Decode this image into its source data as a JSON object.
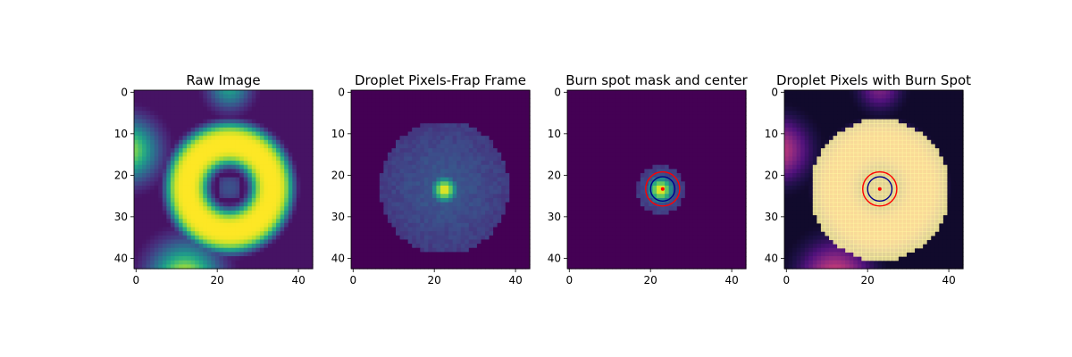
{
  "chart_data": [
    {
      "type": "heatmap",
      "title": "Raw Image",
      "colormap": "viridis",
      "xlim": [
        0,
        43
      ],
      "ylim": [
        0,
        42
      ],
      "xticks": [
        "0",
        "20",
        "40"
      ],
      "yticks": [
        "0",
        "10",
        "20",
        "30",
        "40"
      ],
      "features": [
        {
          "kind": "ring",
          "cx": 23,
          "cy": 23,
          "inner_radius": 5,
          "outer_radius": 16,
          "peak": 1.0
        },
        {
          "kind": "spot",
          "cx": 23,
          "cy": 23,
          "radius": 3,
          "value": 0.25
        },
        {
          "kind": "blob",
          "cx": -2,
          "cy": 14,
          "radius": 7,
          "peak": 0.85
        },
        {
          "kind": "blob",
          "cx": 23,
          "cy": -1,
          "radius": 5,
          "peak": 0.55
        },
        {
          "kind": "blob",
          "cx": 12,
          "cy": 45,
          "radius": 8,
          "peak": 0.95
        }
      ]
    },
    {
      "type": "heatmap",
      "title": "Droplet Pixels-Frap Frame",
      "colormap": "viridis",
      "xlim": [
        0,
        43
      ],
      "ylim": [
        0,
        42
      ],
      "xticks": [
        "0",
        "20",
        "40"
      ],
      "yticks": [
        "0",
        "10",
        "20",
        "30",
        "40"
      ],
      "features": [
        {
          "kind": "disk_mask",
          "cx": 22.5,
          "cy": 23,
          "radius": 16
        },
        {
          "kind": "spot",
          "cx": 22.5,
          "cy": 23.5,
          "radius": 3,
          "peak": 1.0
        }
      ]
    },
    {
      "type": "heatmap",
      "title": "Burn spot mask and center",
      "colormap": "viridis",
      "xlim": [
        0,
        43
      ],
      "ylim": [
        0,
        42
      ],
      "xticks": [
        "0",
        "20",
        "40"
      ],
      "yticks": [
        "0",
        "10",
        "20",
        "30",
        "40"
      ],
      "features": [
        {
          "kind": "disk_mask",
          "cx": 22.5,
          "cy": 23.5,
          "radius": 6
        },
        {
          "kind": "spot",
          "cx": 22.5,
          "cy": 23.5,
          "radius": 3,
          "peak": 1.0
        }
      ],
      "overlays": [
        {
          "kind": "circle",
          "cx": 23,
          "cy": 23.3,
          "r": 4.2,
          "color": "#ff0000"
        },
        {
          "kind": "circle",
          "cx": 23,
          "cy": 23.3,
          "r": 3.0,
          "color": "#00008b"
        },
        {
          "kind": "point",
          "cx": 23,
          "cy": 23.3,
          "color": "#ff0000"
        }
      ]
    },
    {
      "type": "heatmap",
      "title": "Droplet Pixels with Burn Spot",
      "colormap": "magma",
      "xlim": [
        0,
        43
      ],
      "ylim": [
        0,
        42
      ],
      "xticks": [
        "0",
        "20",
        "40"
      ],
      "yticks": [
        "0",
        "10",
        "20",
        "30",
        "40"
      ],
      "features": [
        {
          "kind": "ring",
          "cx": 23,
          "cy": 23,
          "inner_radius": 5,
          "outer_radius": 16,
          "peak": 1.0
        },
        {
          "kind": "spot",
          "cx": 23,
          "cy": 23,
          "radius": 3,
          "value": 0.25
        },
        {
          "kind": "blob",
          "cx": -2,
          "cy": 14,
          "radius": 7,
          "peak": 0.85
        },
        {
          "kind": "blob",
          "cx": 23,
          "cy": -1,
          "radius": 5,
          "peak": 0.55
        },
        {
          "kind": "blob",
          "cx": 12,
          "cy": 45,
          "radius": 8,
          "peak": 0.95
        }
      ],
      "mask_overlay": {
        "cx": 23,
        "cy": 23.5,
        "radius": 17,
        "color": "#fff5a0",
        "opacity": 0.85
      },
      "overlays": [
        {
          "kind": "circle",
          "cx": 23,
          "cy": 23.3,
          "r": 4.2,
          "color": "#ff0000"
        },
        {
          "kind": "circle",
          "cx": 23,
          "cy": 23.3,
          "r": 3.0,
          "color": "#00008b"
        },
        {
          "kind": "point",
          "cx": 23,
          "cy": 23.3,
          "color": "#ff0000"
        }
      ]
    }
  ]
}
